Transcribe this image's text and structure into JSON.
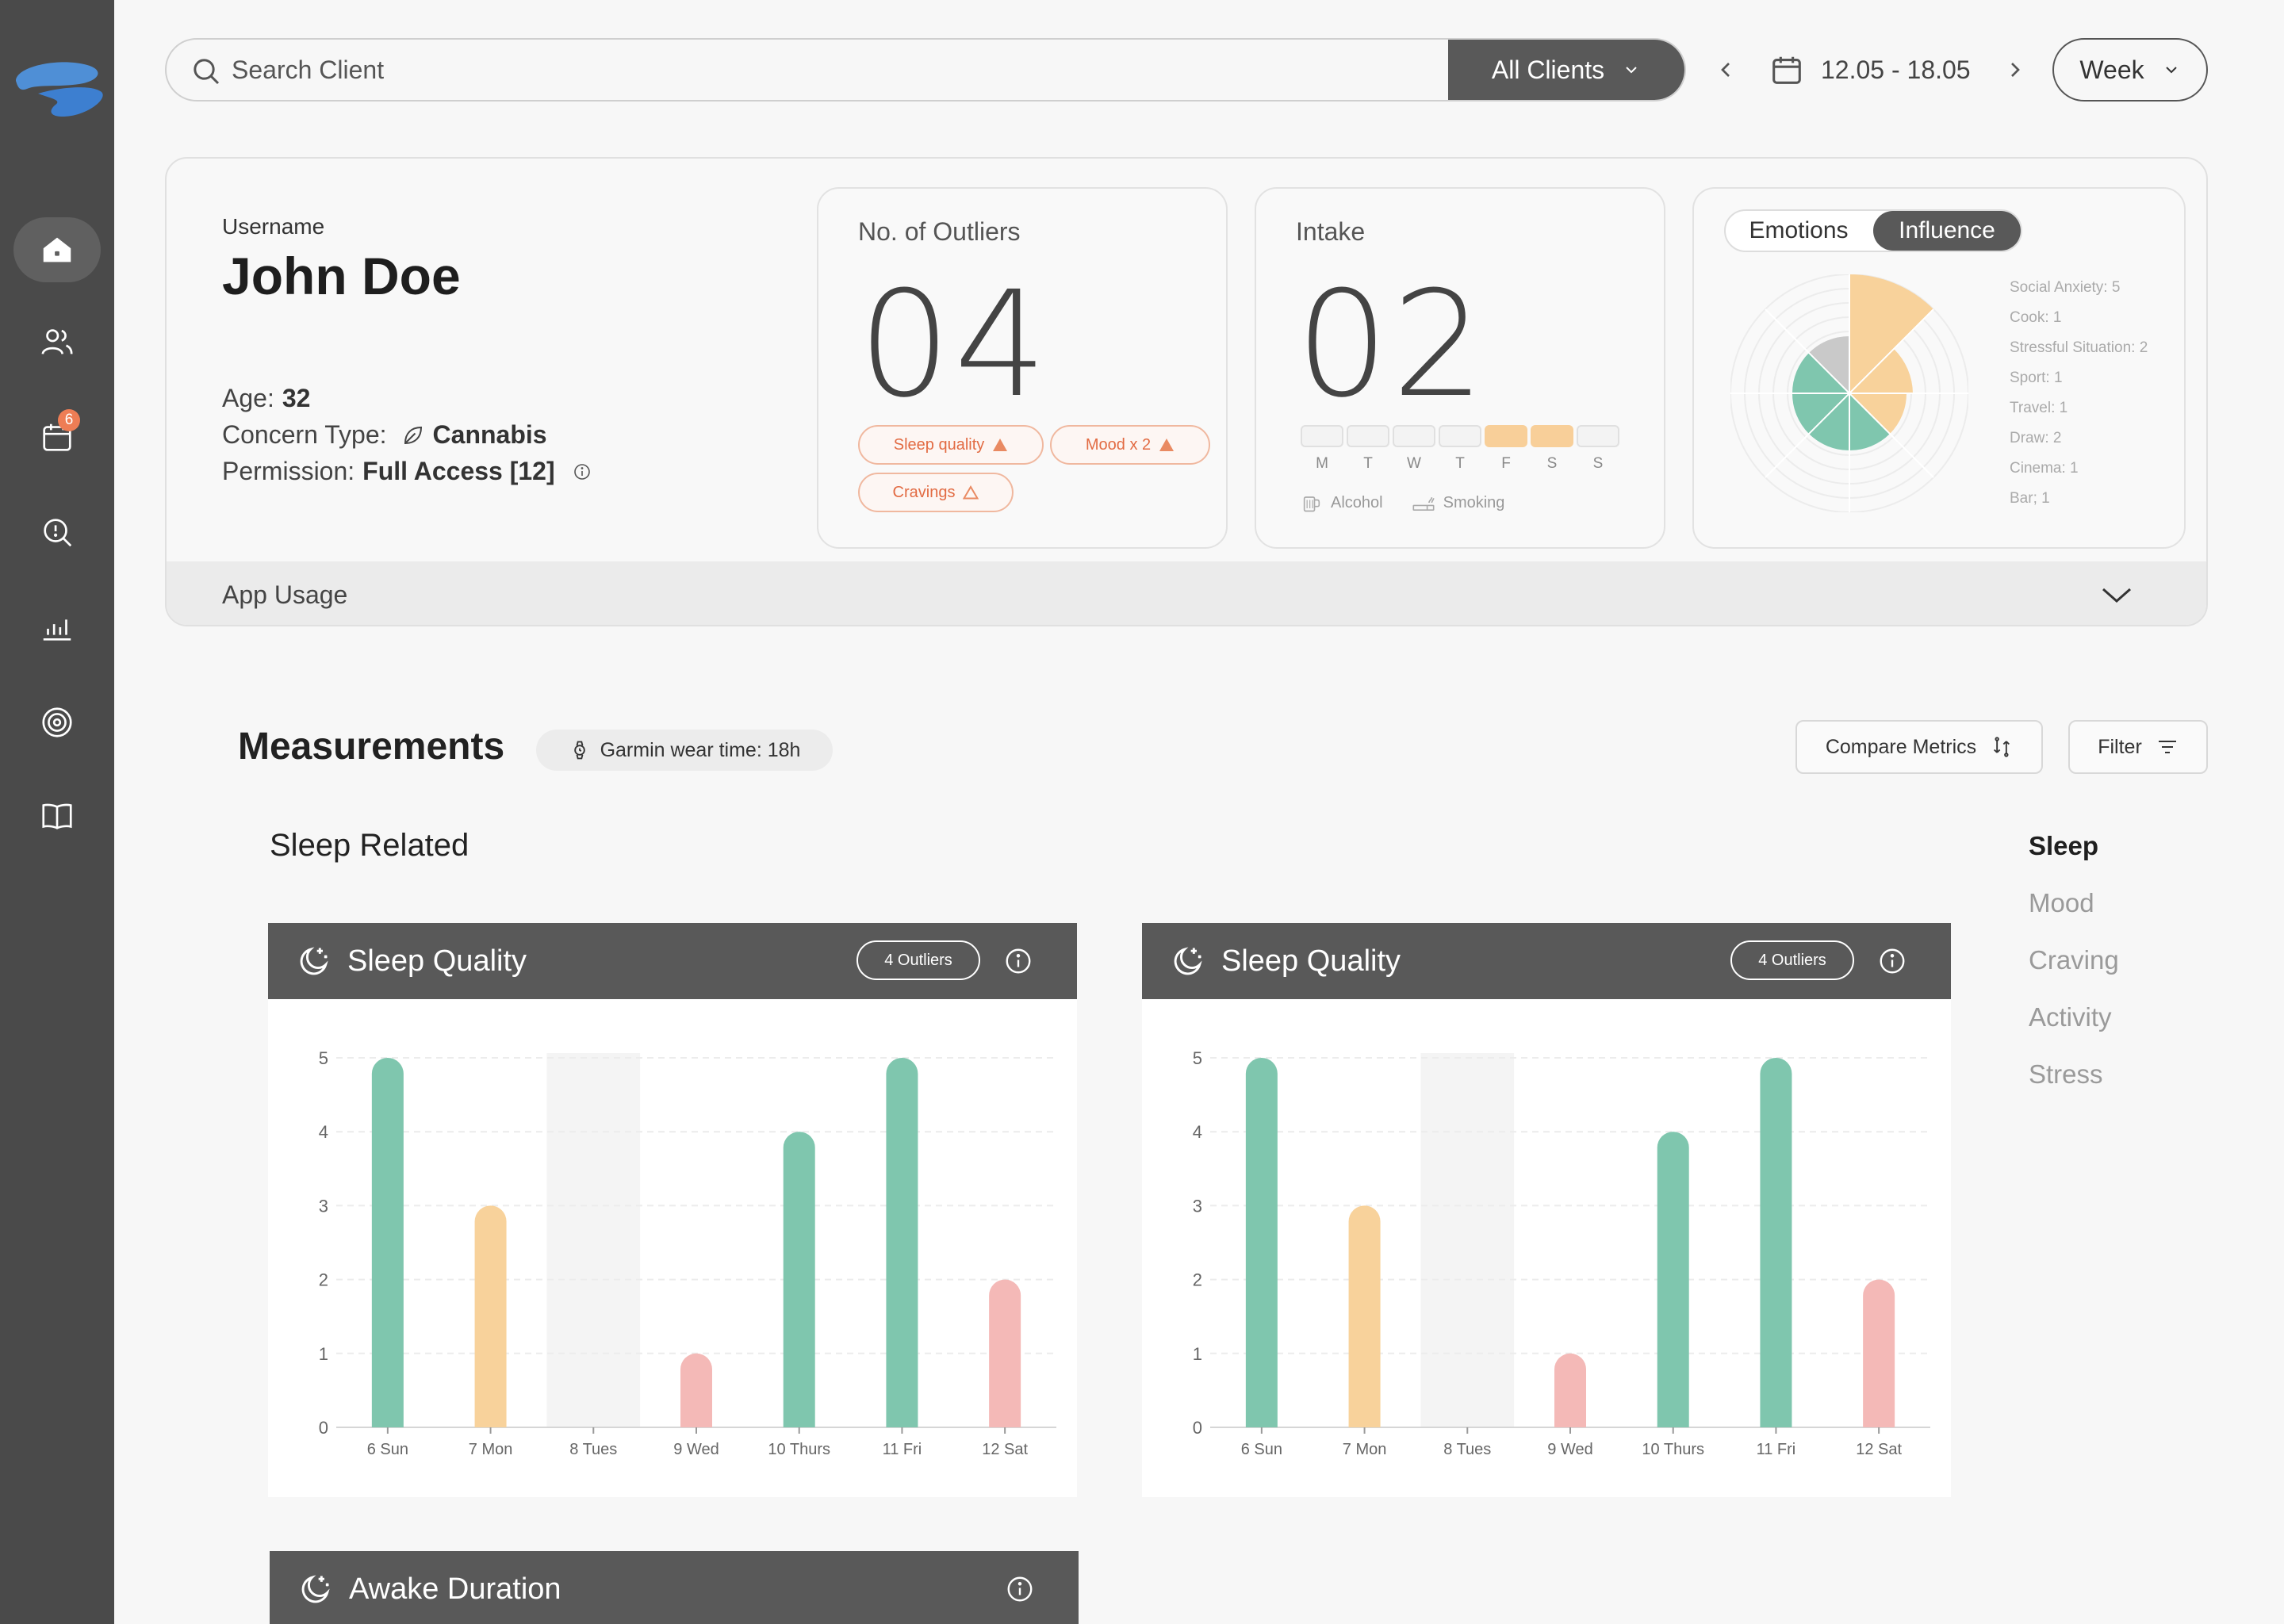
{
  "sidebar": {
    "items": [
      {
        "name": "home",
        "active": true
      },
      {
        "name": "clients",
        "active": false
      },
      {
        "name": "calendar",
        "active": false,
        "badge": "6"
      },
      {
        "name": "insights",
        "active": false
      },
      {
        "name": "analytics",
        "active": false
      },
      {
        "name": "goals",
        "active": false
      },
      {
        "name": "journal",
        "active": false
      }
    ]
  },
  "topbar": {
    "search_placeholder": "Search Client",
    "clients_filter": "All Clients",
    "date_range": "12.05 - 18.05",
    "period": "Week"
  },
  "client": {
    "username_label": "Username",
    "name": "John Doe",
    "age_label": "Age:",
    "age": "32",
    "concern_label": "Concern Type:",
    "concern": "Cannabis",
    "permission_label": "Permission:",
    "permission": "Full Access [12]"
  },
  "outliers_card": {
    "title": "No. of Outliers",
    "value": "04",
    "chips": [
      "Sleep quality",
      "Mood x 2",
      "Cravings"
    ]
  },
  "intake_card": {
    "title": "Intake",
    "value": "02",
    "days": [
      "M",
      "T",
      "W",
      "T",
      "F",
      "S",
      "S"
    ],
    "active_days": [
      false,
      false,
      false,
      false,
      true,
      true,
      false
    ],
    "legend": [
      "Alcohol",
      "Smoking"
    ]
  },
  "emotions_card": {
    "tabs": [
      "Emotions",
      "Influence"
    ],
    "active_tab": "Influence",
    "items": [
      "Social Anxiety: 5",
      "Cook: 1",
      "Stressful Situation: 2",
      "Sport: 1",
      "Travel: 1",
      "Draw: 2",
      "Cinema: 1",
      "Bar; 1"
    ]
  },
  "app_usage": "App Usage",
  "measurements": {
    "title": "Measurements",
    "garmin": "Garmin wear time: 18h",
    "compare": "Compare Metrics",
    "filter": "Filter",
    "section": "Sleep Related",
    "side_nav": [
      "Sleep",
      "Mood",
      "Craving",
      "Activity",
      "Stress"
    ],
    "cards": [
      {
        "title": "Sleep Quality",
        "outliers": "4 Outliers"
      },
      {
        "title": "Sleep Quality",
        "outliers": "4 Outliers"
      },
      {
        "title": "Awake Duration"
      }
    ]
  },
  "colors": {
    "good": "#7fc6ae",
    "mid": "#f8d29b",
    "bad": "#f4b9b7",
    "missing": "#f4f4f4"
  },
  "chart_data": [
    {
      "type": "bar",
      "title": "Sleep Quality",
      "categories": [
        "6 Sun",
        "7 Mon",
        "8 Tues",
        "9 Wed",
        "10 Thurs",
        "11 Fri",
        "12 Sat"
      ],
      "values": [
        5,
        3,
        null,
        1,
        4,
        5,
        2
      ],
      "ylim": [
        0,
        5
      ],
      "yticks": [
        0,
        1,
        2,
        3,
        4,
        5
      ],
      "grid": true
    },
    {
      "type": "bar",
      "title": "Sleep Quality",
      "categories": [
        "6 Sun",
        "7 Mon",
        "8 Tues",
        "9 Wed",
        "10 Thurs",
        "11 Fri",
        "12 Sat"
      ],
      "values": [
        5,
        3,
        null,
        1,
        4,
        5,
        2
      ],
      "ylim": [
        0,
        5
      ],
      "yticks": [
        0,
        1,
        2,
        3,
        4,
        5
      ],
      "grid": true
    }
  ]
}
